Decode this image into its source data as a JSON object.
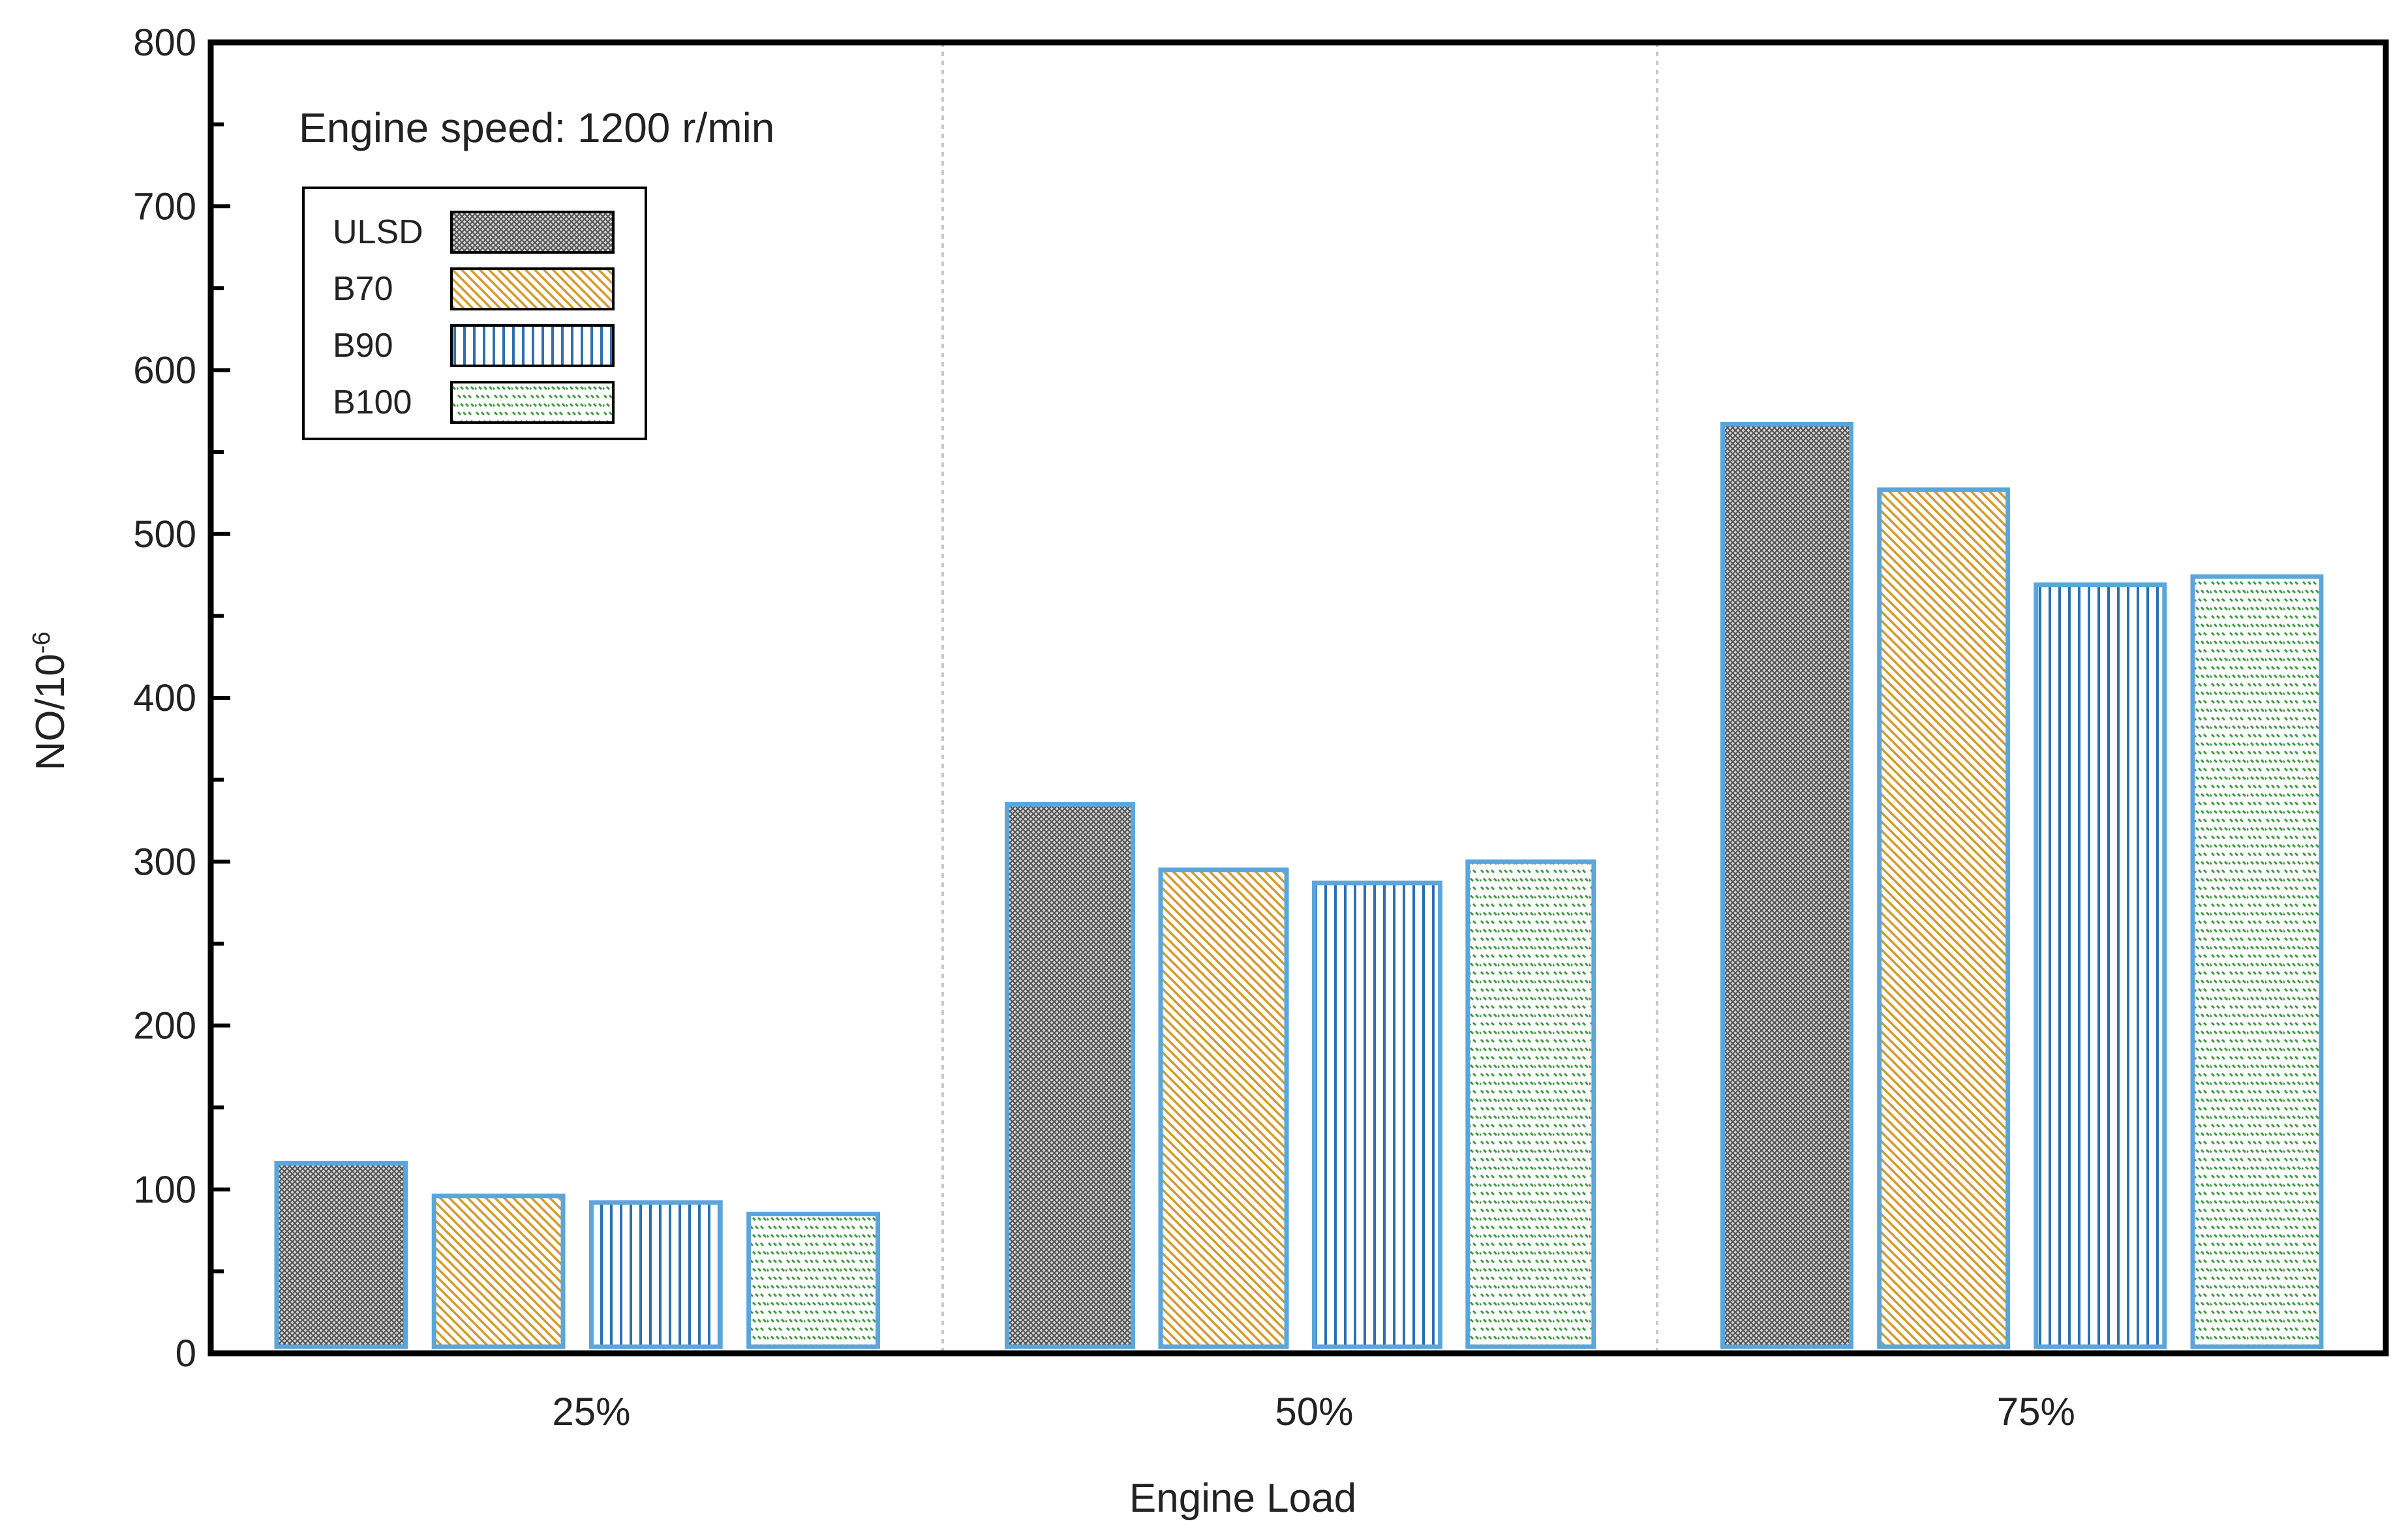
{
  "chart_data": {
    "type": "bar",
    "title": "",
    "annotation": "Engine speed: 1200  r/min",
    "xlabel": "Engine Load",
    "ylabel": "NO/10",
    "ylabel_superscript": "-6",
    "ylim": [
      0,
      800
    ],
    "yticks": [
      0,
      100,
      200,
      300,
      400,
      500,
      600,
      700,
      800
    ],
    "categories": [
      "25%",
      "50%",
      "75%"
    ],
    "series": [
      {
        "name": "ULSD",
        "values": [
          116,
          335,
          567
        ],
        "pattern": "crosshatch",
        "color": "#7a7a7a"
      },
      {
        "name": "B70",
        "values": [
          96,
          295,
          527
        ],
        "pattern": "diagonal",
        "color": "#d49a2a"
      },
      {
        "name": "B90",
        "values": [
          92,
          287,
          469
        ],
        "pattern": "vertical",
        "color": "#2f6fb0"
      },
      {
        "name": "B100",
        "values": [
          85,
          300,
          474
        ],
        "pattern": "dashes",
        "color": "#3d9a3d"
      }
    ],
    "grid": false,
    "category_separators": true,
    "legend_position": "top-left"
  },
  "colors": {
    "bar_edge": "#5aa6dc",
    "axis": "#000000"
  }
}
